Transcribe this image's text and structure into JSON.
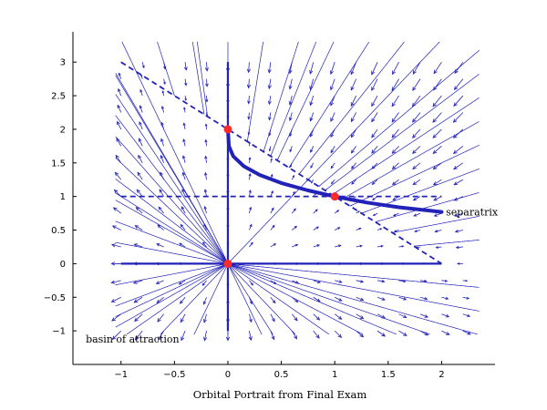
{
  "chart_data": {
    "type": "phase-portrait",
    "xlabel": "Orbital Portrait from Final Exam",
    "xlim": [
      -1.45,
      2.5
    ],
    "ylim": [
      -1.5,
      3.45
    ],
    "x_ticks": [
      -1,
      -0.5,
      0,
      0.5,
      1,
      1.5,
      2
    ],
    "x_tick_labels": [
      "−1",
      "−0.5",
      "0",
      "0.5",
      "1",
      "1.5",
      "2"
    ],
    "y_ticks": [
      -1,
      -0.5,
      0,
      0.5,
      1,
      1.5,
      2,
      2.5,
      3
    ],
    "y_tick_labels": [
      "−1",
      "−0.5",
      "0",
      "0.5",
      "1",
      "1.5",
      "2",
      "2.5",
      "3"
    ],
    "grid": false,
    "colors": {
      "trajectory": "#2222b8",
      "fixed_point": "#ff2a2a",
      "axes": "#000000"
    },
    "system": {
      "dx": "x*(2 - x - y)",
      "dy": "y*(2 - y) - x*y"
    },
    "fixed_points": [
      {
        "x": 0,
        "y": 0
      },
      {
        "x": 0,
        "y": 2
      },
      {
        "x": 1,
        "y": 1
      }
    ],
    "nullclines": {
      "solid": [
        {
          "from": [
            0,
            -1
          ],
          "to": [
            0,
            3
          ]
        },
        {
          "from": [
            -1,
            0
          ],
          "to": [
            2,
            0
          ]
        }
      ],
      "dashed": [
        {
          "from": [
            -1,
            3
          ],
          "to": [
            2,
            0
          ]
        },
        {
          "from": [
            -1,
            1
          ],
          "to": [
            2,
            1
          ]
        }
      ]
    },
    "separatrix_curve": [
      [
        0,
        2
      ],
      [
        0.01,
        1.75
      ],
      [
        0.05,
        1.6
      ],
      [
        0.15,
        1.45
      ],
      [
        0.3,
        1.32
      ],
      [
        0.5,
        1.2
      ],
      [
        0.75,
        1.09
      ],
      [
        1,
        1
      ],
      [
        1.3,
        0.91
      ],
      [
        1.6,
        0.84
      ],
      [
        2,
        0.77
      ]
    ],
    "annotations": [
      {
        "text": "separatrix",
        "x": 2.04,
        "y": 0.77
      },
      {
        "text": "basin of attraction",
        "x": -1.33,
        "y": -1.12
      }
    ]
  }
}
